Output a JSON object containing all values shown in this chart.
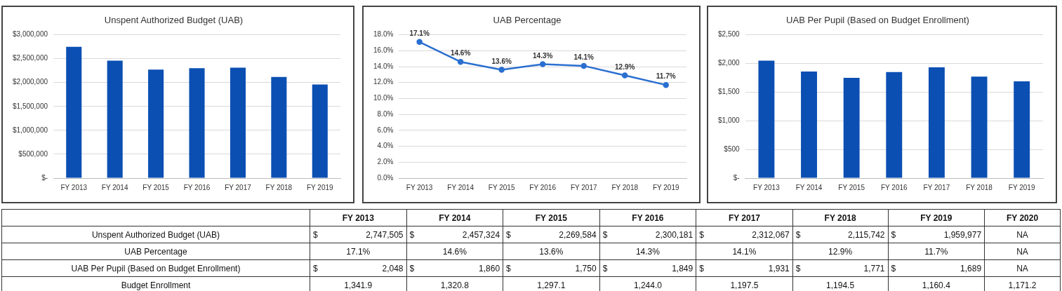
{
  "chart_data": [
    {
      "type": "bar",
      "title": "Unspent Authorized Budget (UAB)",
      "categories": [
        "FY 2013",
        "FY 2014",
        "FY 2015",
        "FY 2016",
        "FY 2017",
        "FY 2018",
        "FY 2019"
      ],
      "series": [
        {
          "color": "#0b4fb3",
          "values": [
            2747505,
            2457324,
            2269584,
            2300181,
            2312067,
            2115742,
            1959977
          ]
        }
      ],
      "ylim": [
        0,
        3000000
      ],
      "yticks": [
        {
          "value": 0,
          "label": "$-"
        },
        {
          "value": 500000,
          "label": "$500,000"
        },
        {
          "value": 1000000,
          "label": "$1,000,000"
        },
        {
          "value": 1500000,
          "label": "$1,500,000"
        },
        {
          "value": 2000000,
          "label": "$2,000,000"
        },
        {
          "value": 2500000,
          "label": "$2,500,000"
        },
        {
          "value": 3000000,
          "label": "$3,000,000"
        }
      ],
      "grid": "y"
    },
    {
      "type": "line",
      "title": "UAB Percentage",
      "categories": [
        "FY 2013",
        "FY 2014",
        "FY 2015",
        "FY 2016",
        "FY 2017",
        "FY 2018",
        "FY 2019"
      ],
      "series": [
        {
          "color": "#2a6fd0",
          "values": [
            17.1,
            14.6,
            13.6,
            14.3,
            14.1,
            12.9,
            11.7
          ],
          "value_labels": [
            "17.1%",
            "14.6%",
            "13.6%",
            "14.3%",
            "14.1%",
            "12.9%",
            "11.7%"
          ]
        }
      ],
      "ylim": [
        0,
        18
      ],
      "yticks": [
        {
          "value": 0,
          "label": "0.0%"
        },
        {
          "value": 2,
          "label": "2.0%"
        },
        {
          "value": 4,
          "label": "4.0%"
        },
        {
          "value": 6,
          "label": "6.0%"
        },
        {
          "value": 8,
          "label": "8.0%"
        },
        {
          "value": 10,
          "label": "10.0%"
        },
        {
          "value": 12,
          "label": "12.0%"
        },
        {
          "value": 14,
          "label": "14.0%"
        },
        {
          "value": 16,
          "label": "16.0%"
        },
        {
          "value": 18,
          "label": "18.0%"
        }
      ],
      "grid": "y",
      "marker": "circle",
      "line_style": "solid"
    },
    {
      "type": "bar",
      "title": "UAB Per Pupil (Based on Budget Enrollment)",
      "categories": [
        "FY 2013",
        "FY 2014",
        "FY 2015",
        "FY 2016",
        "FY 2017",
        "FY 2018",
        "FY 2019"
      ],
      "series": [
        {
          "color": "#0b4fb3",
          "values": [
            2048,
            1860,
            1750,
            1849,
            1931,
            1771,
            1689
          ]
        }
      ],
      "ylim": [
        0,
        2500
      ],
      "yticks": [
        {
          "value": 0,
          "label": "$-"
        },
        {
          "value": 500,
          "label": "$500"
        },
        {
          "value": 1000,
          "label": "$1,000"
        },
        {
          "value": 1500,
          "label": "$1,500"
        },
        {
          "value": 2000,
          "label": "$2,000"
        },
        {
          "value": 2500,
          "label": "$2,500"
        }
      ],
      "grid": "y"
    },
    {
      "type": "other",
      "categories": [
        "FY 2013",
        "FY 2014",
        "FY 2015",
        "FY 2016",
        "FY 2017",
        "FY 2018",
        "FY 2019",
        "FY 2020"
      ],
      "y_categories": [
        "Unspent Authorized Budget (UAB)",
        "UAB Percentage",
        "UAB Per Pupil (Based on Budget Enrollment)",
        "Budget Enrollment"
      ],
      "cell_labels": [
        [
          "$ 2,747,505",
          "$ 2,457,324",
          "$ 2,269,584",
          "$ 2,300,181",
          "$ 2,312,067",
          "$ 2,115,742",
          "$ 1,959,977",
          "NA"
        ],
        [
          "17.1%",
          "14.6%",
          "13.6%",
          "14.3%",
          "14.1%",
          "12.9%",
          "11.7%",
          "NA"
        ],
        [
          "$ 2,048",
          "$ 1,860",
          "$ 1,750",
          "$ 1,849",
          "$ 1,931",
          "$ 1,771",
          "$ 1,689",
          "NA"
        ],
        [
          "1,341.9",
          "1,320.8",
          "1,297.1",
          "1,244.0",
          "1,197.5",
          "1,194.5",
          "1,160.4",
          "1,171.2"
        ]
      ]
    }
  ]
}
